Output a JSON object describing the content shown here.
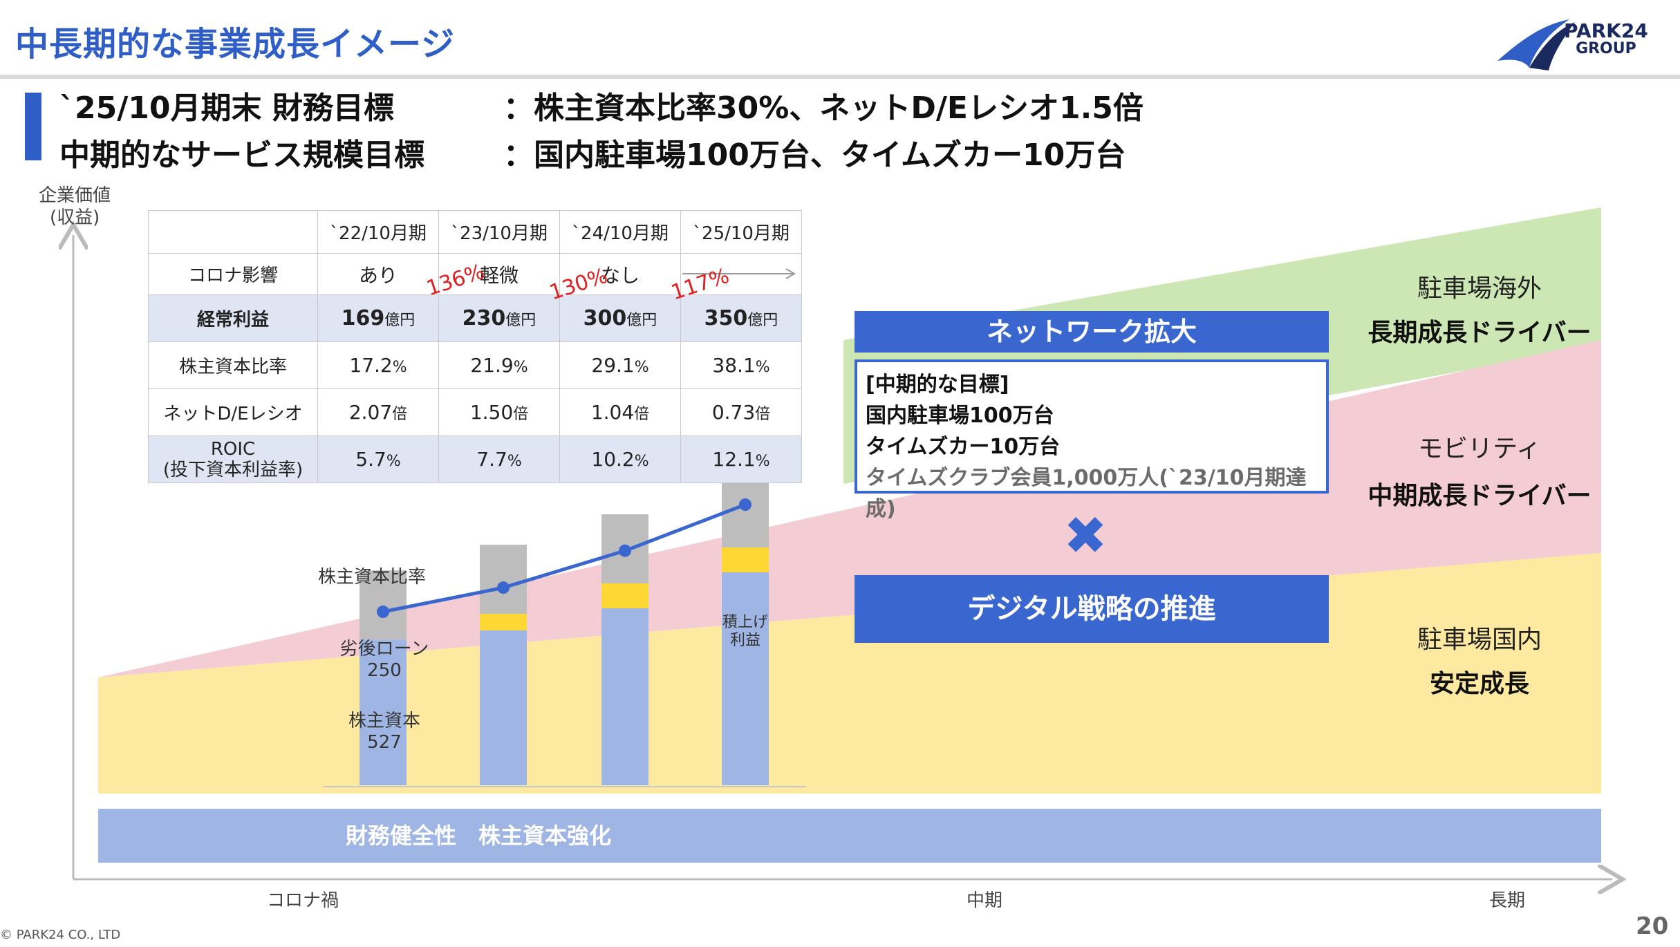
{
  "header": {
    "title": "中長期的な事業成長イメージ",
    "logo_line1": "PARK24",
    "logo_line2": "GROUP"
  },
  "targets": {
    "row1_label": "`25/10月期末 財務目標",
    "row1_value": "：株主資本比率30%、ネットD/Eレシオ1.5倍",
    "row2_label": "中期的なサービス規模目標",
    "row2_value": "：国内駐車場100万台、タイムズカー10万台"
  },
  "yaxis_label_1": "企業価値",
  "yaxis_label_2": "(収益)",
  "table": {
    "columns": [
      "`22/10月期",
      "`23/10月期",
      "`24/10月期",
      "`25/10月期"
    ],
    "rows": [
      {
        "label": "コロナ影響",
        "values": [
          "あり",
          "軽微",
          "なし",
          ""
        ]
      },
      {
        "label": "経常利益",
        "values": [
          "169",
          "230",
          "300",
          "350"
        ],
        "unit": "億円"
      },
      {
        "label": "株主資本比率",
        "values": [
          "17.2",
          "21.9",
          "29.1",
          "38.1"
        ],
        "unit": "%"
      },
      {
        "label": "ネットD/Eレシオ",
        "values": [
          "2.07",
          "1.50",
          "1.04",
          "0.73"
        ],
        "unit": "倍"
      },
      {
        "label": "ROIC",
        "label2": "(投下資本利益率)",
        "values": [
          "5.7",
          "7.7",
          "10.2",
          "12.1"
        ],
        "unit": "%"
      }
    ],
    "growth_notes": [
      "136%",
      "130%",
      "117%"
    ]
  },
  "chart": {
    "line_label": "株主資本比率",
    "sub_loan_label": "劣後ローン",
    "sub_loan_value": "250",
    "equity_label": "株主資本",
    "equity_value": "527",
    "retained_label_1": "積上げ",
    "retained_label_2": "利益",
    "foundation_label": "財務健全性　株主資本強化"
  },
  "chart_data": {
    "type": "bar",
    "categories": [
      "`22/10月期",
      "`23/10月期",
      "`24/10月期",
      "`25/10月期"
    ],
    "series": [
      {
        "name": "株主資本",
        "values": [
          527,
          560,
          640,
          770
        ]
      },
      {
        "name": "積上げ利益",
        "values": [
          0,
          60,
          90,
          90
        ]
      },
      {
        "name": "劣後ローン",
        "values": [
          250,
          250,
          250,
          250
        ]
      }
    ],
    "line_series": {
      "name": "株主資本比率",
      "values": [
        17.2,
        21.9,
        29.1,
        38.1
      ]
    },
    "ylim": [
      0,
      1200
    ],
    "colors": {
      "equity": "#9fb5e3",
      "retained": "#fdd835",
      "loan": "#bdbdbd",
      "line": "#3a66cf"
    }
  },
  "strategy": {
    "network": "ネットワーク拡大",
    "goal_header": "[中期的な目標]",
    "goal1": "国内駐車場100万台",
    "goal2": "タイムズカー10万台",
    "goal3": "タイムズクラブ会員1,000万人(`23/10月期達成)",
    "cross": "✖",
    "digital": "デジタル戦略の推進"
  },
  "drivers": {
    "overseas_head": "駐車場海外",
    "overseas_body": "長期成長ドライバー",
    "mobility_head": "モビリティ",
    "mobility_body": "中期成長ドライバー",
    "domestic_head": "駐車場国内",
    "domestic_body": "安定成長"
  },
  "xaxis": {
    "left": "コロナ禍",
    "mid": "中期",
    "right": "長期"
  },
  "footer": {
    "copyright": "© PARK24 CO., LTD",
    "page": "20"
  },
  "colors": {
    "brand_blue": "#2f5fc6",
    "yellow_band": "#fdeaa0",
    "pink_band": "#f4ccd3",
    "green_band": "#cce7b4",
    "foundation": "#9fb5e3"
  }
}
